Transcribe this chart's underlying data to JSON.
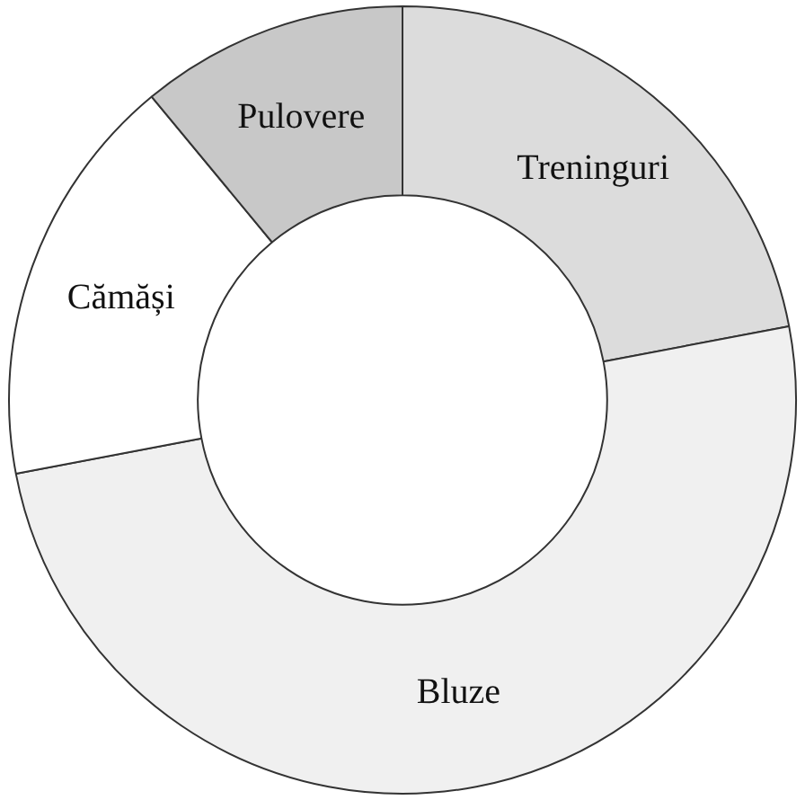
{
  "chart_data": {
    "type": "donut",
    "categories": [
      "Treninguri",
      "Bluze",
      "Cămăși",
      "Pulovere"
    ],
    "values": [
      22,
      50,
      17,
      11
    ],
    "colors": [
      "#dcdcdc",
      "#f0f0f0",
      "#ffffff",
      "#c8c8c8"
    ]
  }
}
